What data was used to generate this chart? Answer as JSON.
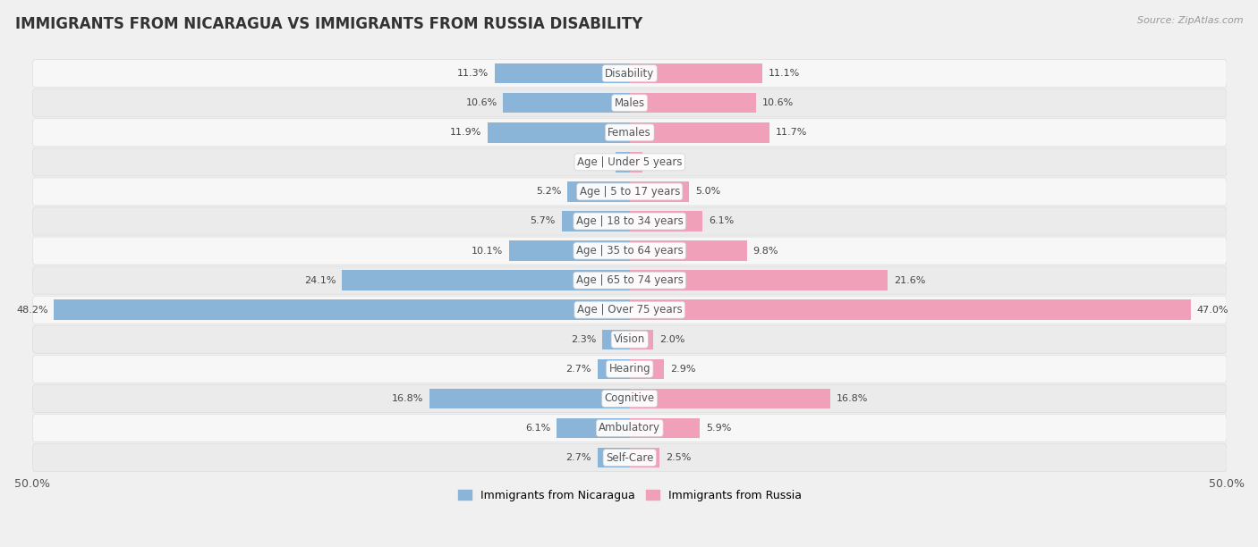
{
  "title": "IMMIGRANTS FROM NICARAGUA VS IMMIGRANTS FROM RUSSIA DISABILITY",
  "source": "Source: ZipAtlas.com",
  "categories": [
    "Disability",
    "Males",
    "Females",
    "Age | Under 5 years",
    "Age | 5 to 17 years",
    "Age | 18 to 34 years",
    "Age | 35 to 64 years",
    "Age | 65 to 74 years",
    "Age | Over 75 years",
    "Vision",
    "Hearing",
    "Cognitive",
    "Ambulatory",
    "Self-Care"
  ],
  "nicaragua_values": [
    11.3,
    10.6,
    11.9,
    1.2,
    5.2,
    5.7,
    10.1,
    24.1,
    48.2,
    2.3,
    2.7,
    16.8,
    6.1,
    2.7
  ],
  "russia_values": [
    11.1,
    10.6,
    11.7,
    1.1,
    5.0,
    6.1,
    9.8,
    21.6,
    47.0,
    2.0,
    2.9,
    16.8,
    5.9,
    2.5
  ],
  "nicaragua_color": "#8ab4d8",
  "russia_color": "#f0a0b8",
  "nicaragua_color_dark": "#6a9fc8",
  "russia_color_dark": "#e8809a",
  "nicaragua_label": "Immigrants from Nicaragua",
  "russia_label": "Immigrants from Russia",
  "axis_limit": 50.0,
  "row_bg_light": "#f7f7f7",
  "row_bg_dark": "#ebebeb",
  "row_border": "#dddddd",
  "title_fontsize": 12,
  "label_fontsize": 8.5,
  "value_fontsize": 8
}
